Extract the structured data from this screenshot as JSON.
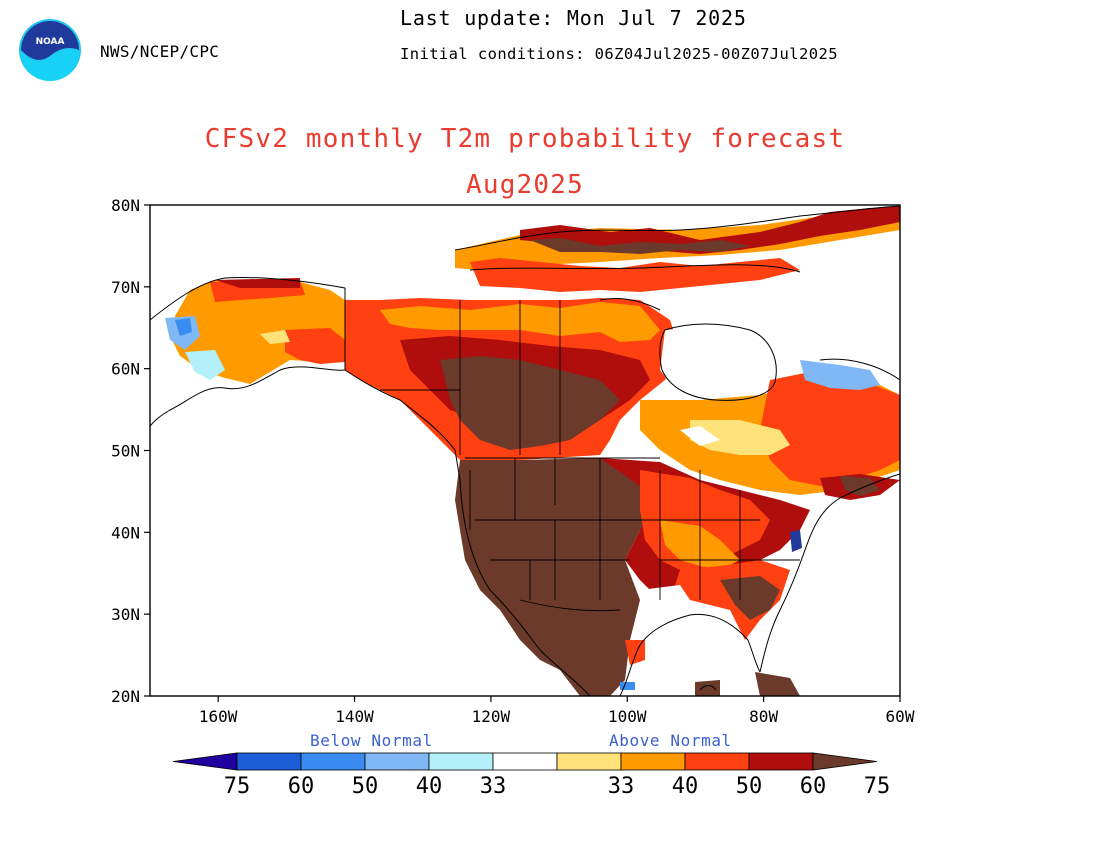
{
  "header": {
    "agency": "NWS/NCEP/CPC",
    "last_update": "Last update: Mon Jul 7 2025",
    "initial_conditions": "Initial conditions: 06Z04Jul2025-00Z07Jul2025",
    "logo_text": "NOAA"
  },
  "title": "CFSv2 monthly T2m probability forecast",
  "subtitle": "Aug2025",
  "axes": {
    "lat_labels": [
      "80N",
      "70N",
      "60N",
      "50N",
      "40N",
      "30N",
      "20N"
    ],
    "lat_values": [
      80,
      70,
      60,
      50,
      40,
      30,
      20
    ],
    "lon_labels": [
      "160W",
      "140W",
      "120W",
      "100W",
      "80W",
      "60W"
    ],
    "lon_values": [
      -160,
      -140,
      -120,
      -100,
      -80,
      -60
    ],
    "lon_range": [
      -170,
      -60
    ],
    "lat_range": [
      20,
      80
    ]
  },
  "legend": {
    "below_label": "Below Normal",
    "above_label": "Above Normal",
    "tick_labels": [
      "75",
      "60",
      "50",
      "40",
      "33",
      "33",
      "40",
      "50",
      "60",
      "75"
    ],
    "colors": {
      "below_75": "#2000a0",
      "below_60": "#1a5fd8",
      "below_50": "#3b8cf0",
      "below_40": "#7fb8f4",
      "below_33": "#b4f0fa",
      "normal": "#ffffff",
      "above_33": "#ffe27a",
      "above_40": "#ff9a00",
      "above_50": "#ff4010",
      "above_60": "#b00d0d",
      "above_75": "#6b3a2a"
    }
  }
}
